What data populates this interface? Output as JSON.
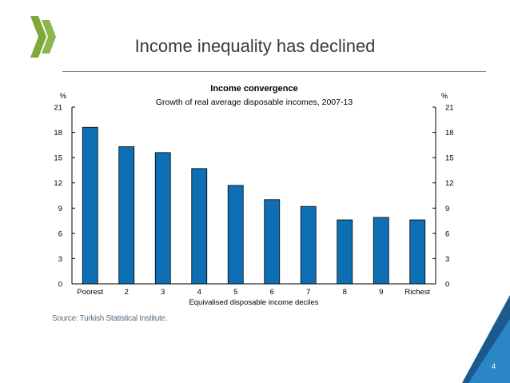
{
  "slide": {
    "title": "Income inequality has declined",
    "source": "Source: Turkish Statistical Institute.",
    "page_number": "4"
  },
  "colors": {
    "bar": "#0e6fb5",
    "logo": "#7fa83a",
    "corner_dark": "#1a5a8f",
    "corner_light": "#2b86c5"
  },
  "chart_data": {
    "type": "bar",
    "title": "Income convergence",
    "subtitle": "Growth of real average disposable incomes, 2007-13",
    "xlabel": "Equivalised disposable income deciles",
    "ylabel_left": "%",
    "ylabel_right": "%",
    "categories": [
      "Poorest",
      "2",
      "3",
      "4",
      "5",
      "6",
      "7",
      "8",
      "9",
      "Richest"
    ],
    "values": [
      18.6,
      16.3,
      15.6,
      13.7,
      11.7,
      10.0,
      9.2,
      7.6,
      7.9,
      7.6
    ],
    "ylim": [
      0,
      21
    ],
    "yticks": [
      0,
      3,
      6,
      9,
      12,
      15,
      18,
      21
    ],
    "grid": false,
    "legend": "none"
  }
}
